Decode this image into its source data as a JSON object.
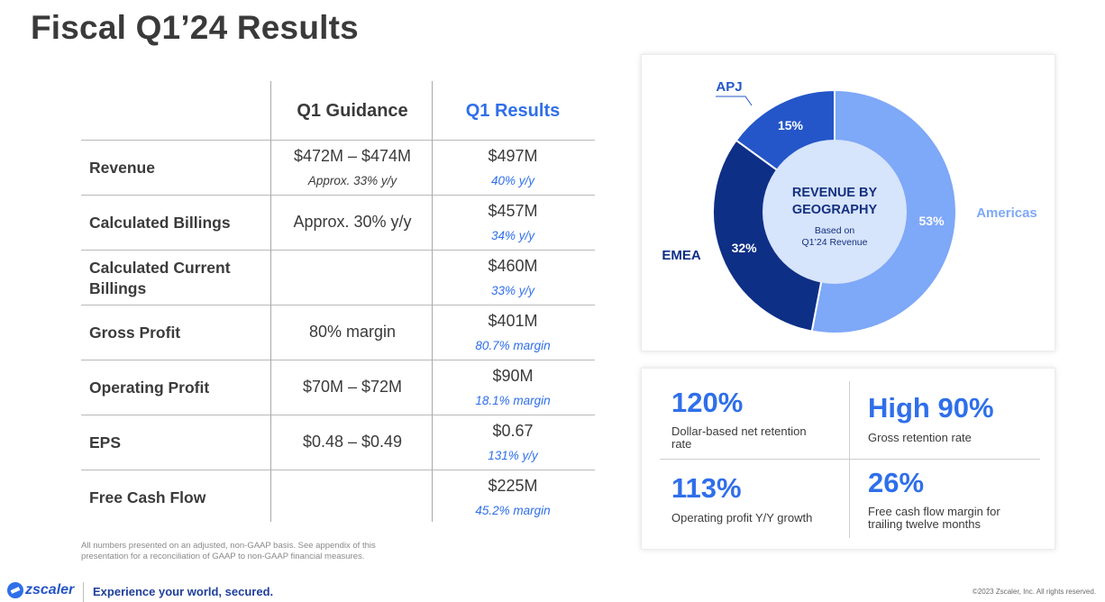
{
  "page": {
    "title": "Fiscal Q1’24 Results"
  },
  "table": {
    "col_guidance": "Q1 Guidance",
    "col_results": "Q1 Results",
    "rows": [
      {
        "label": "Revenue",
        "guidance": "$472M – $474M",
        "guidance_note": "Approx. 33% y/y",
        "result": "$497M",
        "result_note": "40% y/y"
      },
      {
        "label": "Calculated Billings",
        "guidance": "Approx. 30% y/y",
        "guidance_note": "",
        "result": "$457M",
        "result_note": "34% y/y"
      },
      {
        "label": "Calculated Current Billings",
        "guidance": "",
        "guidance_note": "",
        "result": "$460M",
        "result_note": "33% y/y"
      },
      {
        "label": "Gross Profit",
        "guidance": "80% margin",
        "guidance_note": "",
        "result": "$401M",
        "result_note": "80.7% margin"
      },
      {
        "label": "Operating Profit",
        "guidance": "$70M – $72M",
        "guidance_note": "",
        "result": "$90M",
        "result_note": "18.1% margin"
      },
      {
        "label": "EPS",
        "guidance": "$0.48 – $0.49",
        "guidance_note": "",
        "result": "$0.67",
        "result_note": "131% y/y"
      },
      {
        "label": "Free Cash Flow",
        "guidance": "",
        "guidance_note": "",
        "result": "$225M",
        "result_note": "45.2% margin"
      }
    ]
  },
  "footnote": "All numbers presented on an adjusted, non-GAAP basis. See appendix of this presentation for a reconciliation of GAAP to non-GAAP financial measures.",
  "chart_data": {
    "type": "pie",
    "title": "REVENUE BY GEOGRAPHY",
    "subtitle": "Based on Q1’24 Revenue",
    "slices": [
      {
        "name": "Americas",
        "value": 53,
        "label": "53%",
        "color": "#7ea8f8"
      },
      {
        "name": "EMEA",
        "value": 32,
        "label": "32%",
        "color": "#0e2f86"
      },
      {
        "name": "APJ",
        "value": 15,
        "label": "15%",
        "color": "#2456c9"
      }
    ],
    "center_color": "#d6e4fc"
  },
  "metrics": {
    "ndr_value": "120%",
    "ndr_label": "Dollar-based net retention rate",
    "grr_value": "High 90%",
    "grr_label": "Gross retention rate",
    "op_value": "113%",
    "op_label": "Operating profit Y/Y growth",
    "fcf_value": "26%",
    "fcf_label": "Free cash flow margin for trailing twelve months"
  },
  "footer": {
    "logo": "zscaler",
    "tagline": "Experience your world, secured.",
    "copyright": "©2023 Zscaler, Inc. All rights reserved."
  }
}
